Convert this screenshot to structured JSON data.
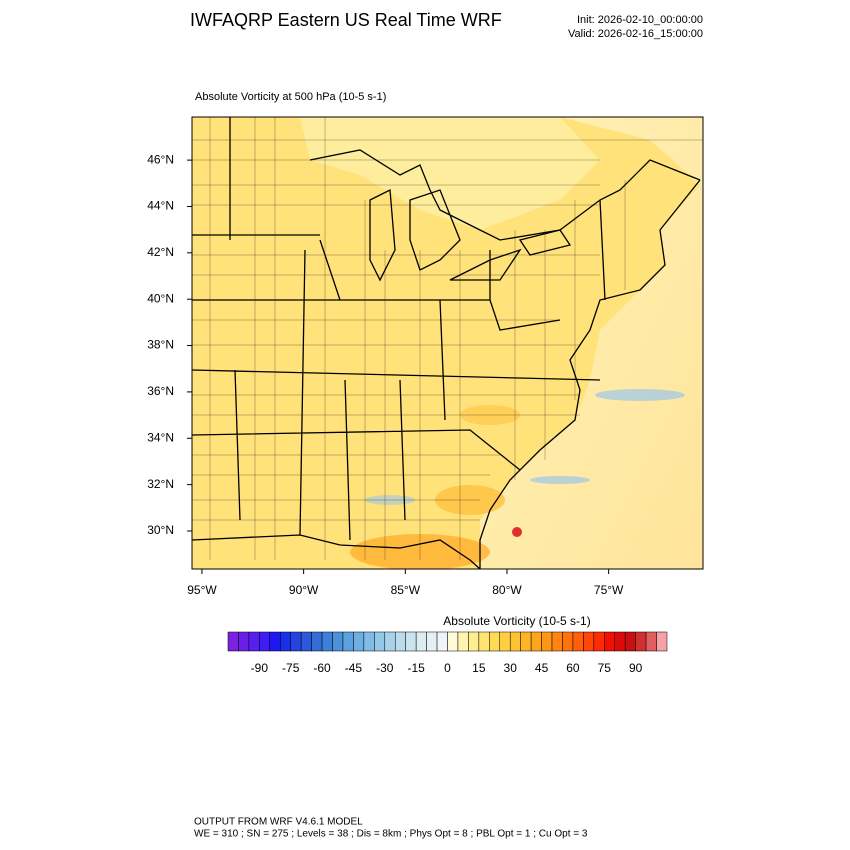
{
  "header": {
    "title": "IWFAQRP Eastern US Real Time WRF",
    "init": "Init: 2026-02-10_00:00:00",
    "valid": "Valid: 2026-02-16_15:00:00"
  },
  "map": {
    "subtitle": "Absolute Vorticity at 500 hPa   (10-5 s-1)",
    "xlim": [
      -95.49,
      -70.36
    ],
    "ylim": [
      28.36,
      47.86
    ],
    "xticks": [
      {
        "value": -95,
        "label": "95°W"
      },
      {
        "value": -90,
        "label": "90°W"
      },
      {
        "value": -85,
        "label": "85°W"
      },
      {
        "value": -80,
        "label": "80°W"
      },
      {
        "value": -75,
        "label": "75°W"
      }
    ],
    "yticks": [
      {
        "value": 30,
        "label": "30°N"
      },
      {
        "value": 32,
        "label": "32°N"
      },
      {
        "value": 34,
        "label": "34°N"
      },
      {
        "value": 36,
        "label": "36°N"
      },
      {
        "value": 38,
        "label": "38°N"
      },
      {
        "value": 40,
        "label": "40°N"
      },
      {
        "value": 42,
        "label": "42°N"
      },
      {
        "value": 44,
        "label": "44°N"
      },
      {
        "value": 46,
        "label": "46°N"
      }
    ]
  },
  "colorbar": {
    "title": "Absolute Vorticity  (10-5 s-1)",
    "lim": [
      -105,
      105
    ],
    "ticks": [
      -90,
      -75,
      -60,
      -45,
      -30,
      -15,
      0,
      15,
      30,
      45,
      60,
      75,
      90
    ],
    "colors": [
      "#7b22e0",
      "#6a1fe8",
      "#5820ef",
      "#3f1df3",
      "#1f17f2",
      "#1a2fe8",
      "#2444e0",
      "#2c58dc",
      "#346cd8",
      "#3d80da",
      "#4a92dc",
      "#5aa2df",
      "#6cb0e2",
      "#80bce5",
      "#94c8e8",
      "#a8d2ea",
      "#bcdcec",
      "#cce4ee",
      "#dcecf2",
      "#e6f0f4",
      "#f0f4f6",
      "#fffbd8",
      "#fff4b0",
      "#ffed90",
      "#ffe470",
      "#ffda55",
      "#ffcf40",
      "#ffc230",
      "#ffb424",
      "#ffa51c",
      "#ff9614",
      "#ff8510",
      "#ff720c",
      "#ff5e0a",
      "#ff4608",
      "#ff2a06",
      "#f01004",
      "#dc0a0a",
      "#c81010",
      "#d03030",
      "#e06060",
      "#f8a0a8"
    ]
  },
  "footer": {
    "line1": "OUTPUT FROM WRF V4.6.1 MODEL",
    "line2": "WE = 310 ; SN = 275 ; Levels = 38 ; Dis = 8km ; Phys Opt = 8 ; PBL Opt = 1 ; Cu Opt = 3"
  }
}
